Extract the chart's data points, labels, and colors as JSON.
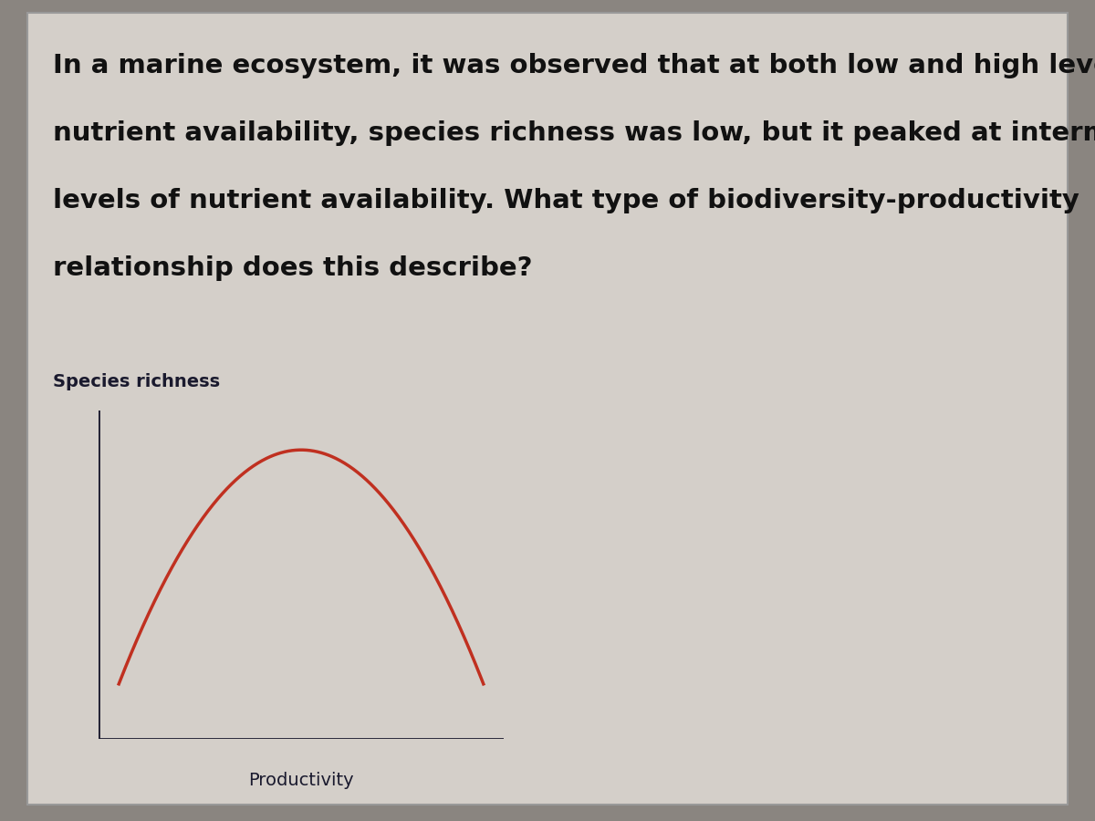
{
  "background_color": "#8a8580",
  "card_color": "#d4cfc9",
  "question_lines": [
    "In a marine ecosystem, it was observed that at both low and high levels of",
    "nutrient availability, species richness was low, but it peaked at intermediate",
    "levels of nutrient availability. What type of biodiversity-productivity",
    "relationship does this describe?"
  ],
  "ylabel": "Species richness",
  "xlabel": "Productivity",
  "curve_color": "#c03020",
  "axis_color": "#1a1a2e",
  "text_color": "#111111",
  "label_color": "#1a1a2e",
  "font_size_question": 21,
  "font_size_label": 14,
  "font_size_axis_label": 14
}
